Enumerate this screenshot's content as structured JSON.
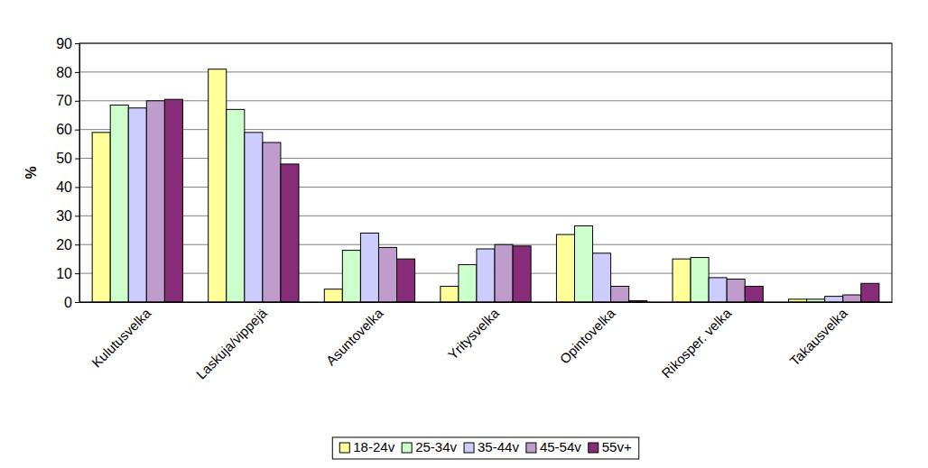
{
  "chart_data": {
    "type": "bar",
    "y_label": "%",
    "categories": [
      "Kulutusvelka",
      "Laskuja/vippejä",
      "Asuntovelka",
      "Yritysvelka",
      "Opintovelka",
      "Rikosper. velka",
      "Takausvelka"
    ],
    "series": [
      {
        "name": "18-24v",
        "color": "#ffff99",
        "values": [
          59,
          81,
          4.5,
          5.5,
          23.5,
          15,
          1
        ]
      },
      {
        "name": "25-34v",
        "color": "#ccffcc",
        "values": [
          68.5,
          67,
          18,
          13,
          26.5,
          15.5,
          1
        ]
      },
      {
        "name": "35-44v",
        "color": "#ccccff",
        "values": [
          67.5,
          59,
          24,
          18.5,
          17,
          8.5,
          2
        ]
      },
      {
        "name": "45-54v",
        "color": "#bf9ccc",
        "values": [
          70,
          55.5,
          19,
          20,
          5.5,
          8,
          2.5
        ]
      },
      {
        "name": "55v+",
        "color": "#862c78",
        "values": [
          70.5,
          48,
          15,
          19.5,
          0.5,
          5.5,
          6.5
        ]
      }
    ],
    "ylim": [
      0,
      90
    ],
    "yticks": [
      0,
      10,
      20,
      30,
      40,
      50,
      60,
      70,
      80,
      90
    ],
    "grid": true,
    "legend": "bottom"
  }
}
